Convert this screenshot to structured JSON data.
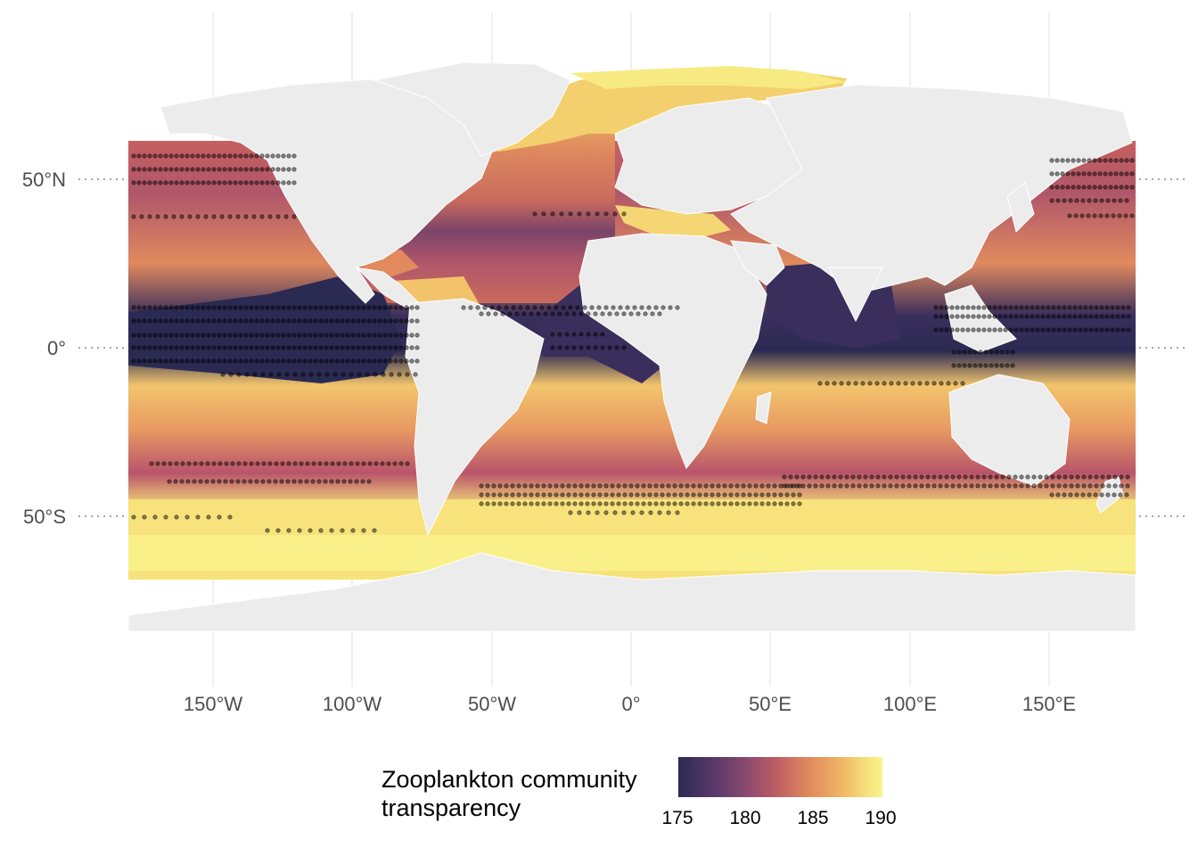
{
  "axes": {
    "lat_labels": [
      "50°N",
      "0°",
      "50°S"
    ],
    "lon_labels": [
      "150°W",
      "100°W",
      "50°W",
      "0°",
      "50°E",
      "100°E",
      "150°E"
    ]
  },
  "legend": {
    "title_line1": "Zooplankton community",
    "title_line2": "transparency",
    "ticks": [
      "175",
      "180",
      "185",
      "190"
    ],
    "range": [
      174.5,
      190.5
    ]
  },
  "colors": {
    "land": "#ececec",
    "low": "#2b2a53",
    "mid": "#c26262",
    "high": "#f9f58c",
    "points": "#000000"
  }
}
